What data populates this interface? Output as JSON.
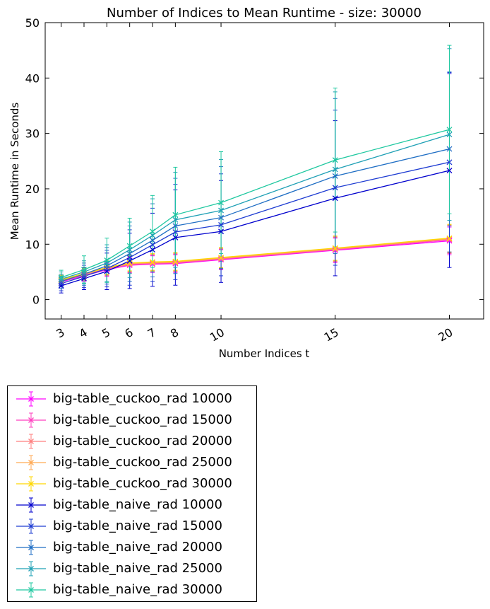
{
  "chart_data": {
    "type": "line",
    "title": "Number of Indices to Mean Runtime - size: 30000",
    "xlabel": "Number Indices t",
    "ylabel": "Mean Runtime in Seconds",
    "x": [
      3,
      4,
      5,
      6,
      7,
      8,
      10,
      15,
      20
    ],
    "xlim": [
      2.3,
      21.5
    ],
    "ylim": [
      -3.5,
      50
    ],
    "xticks": [
      3,
      4,
      5,
      6,
      7,
      8,
      10,
      15,
      20
    ],
    "yticks": [
      0,
      10,
      20,
      30,
      40,
      50
    ],
    "grid": false,
    "legend_position": "below",
    "series": [
      {
        "name": "big-table_cuckoo_rad 10000",
        "color": "#ff00ff",
        "values": [
          3.2,
          4.3,
          5.4,
          6.2,
          6.4,
          6.5,
          7.2,
          8.9,
          10.6
        ],
        "err": [
          0.8,
          1.0,
          1.2,
          1.4,
          1.5,
          1.6,
          1.8,
          2.2,
          2.5
        ]
      },
      {
        "name": "big-table_cuckoo_rad 15000",
        "color": "#ff3fbf",
        "values": [
          3.3,
          4.4,
          5.5,
          6.3,
          6.5,
          6.6,
          7.3,
          9.0,
          10.8
        ],
        "err": [
          0.8,
          1.0,
          1.2,
          1.4,
          1.5,
          1.6,
          1.8,
          2.2,
          2.5
        ]
      },
      {
        "name": "big-table_cuckoo_rad 20000",
        "color": "#ff7f7f",
        "values": [
          3.4,
          4.5,
          5.6,
          6.4,
          6.6,
          6.7,
          7.4,
          9.1,
          10.9
        ],
        "err": [
          0.8,
          1.0,
          1.2,
          1.4,
          1.5,
          1.6,
          1.8,
          2.2,
          2.5
        ]
      },
      {
        "name": "big-table_cuckoo_rad 25000",
        "color": "#ffaa55",
        "values": [
          3.5,
          4.6,
          5.7,
          6.5,
          6.7,
          6.8,
          7.5,
          9.2,
          11.0
        ],
        "err": [
          0.8,
          1.0,
          1.2,
          1.4,
          1.5,
          1.6,
          1.8,
          2.2,
          2.5
        ]
      },
      {
        "name": "big-table_cuckoo_rad 30000",
        "color": "#ffd700",
        "values": [
          3.6,
          4.7,
          5.8,
          6.6,
          6.8,
          6.9,
          7.6,
          9.3,
          11.1
        ],
        "err": [
          0.8,
          1.0,
          1.2,
          1.4,
          1.5,
          1.6,
          1.8,
          2.2,
          2.5
        ]
      },
      {
        "name": "big-table_naive_rad 10000",
        "color": "#0000cd",
        "values": [
          2.5,
          3.8,
          5.1,
          7.0,
          9.0,
          11.2,
          12.3,
          18.3,
          23.3
        ],
        "err": [
          1.3,
          2.0,
          3.3,
          5.0,
          6.6,
          8.6,
          9.2,
          14.0,
          17.5
        ]
      },
      {
        "name": "big-table_naive_rad 15000",
        "color": "#1e3cd2",
        "values": [
          2.9,
          4.2,
          5.6,
          7.6,
          9.9,
          12.2,
          13.5,
          20.2,
          24.8
        ],
        "err": [
          1.3,
          2.0,
          3.3,
          5.0,
          6.6,
          8.6,
          9.2,
          14.0,
          16.2
        ]
      },
      {
        "name": "big-table_naive_rad 20000",
        "color": "#1f6ec4",
        "values": [
          3.3,
          4.6,
          6.1,
          8.3,
          10.7,
          13.3,
          14.8,
          22.3,
          27.2
        ],
        "err": [
          1.3,
          2.0,
          3.3,
          5.0,
          6.6,
          8.6,
          9.2,
          14.0,
          13.9
        ]
      },
      {
        "name": "big-table_naive_rad 25000",
        "color": "#1fa0b5",
        "values": [
          3.7,
          5.0,
          6.6,
          9.0,
          11.6,
          14.4,
          16.1,
          23.5,
          29.8
        ],
        "err": [
          1.3,
          2.0,
          3.3,
          5.0,
          6.6,
          8.6,
          9.2,
          14.0,
          15.5
        ]
      },
      {
        "name": "big-table_naive_rad 30000",
        "color": "#1fc8a0",
        "values": [
          4.0,
          5.4,
          7.1,
          9.7,
          12.3,
          15.3,
          17.5,
          25.2,
          30.7
        ],
        "err": [
          1.3,
          2.5,
          4.0,
          5.0,
          6.5,
          8.6,
          9.2,
          13.0,
          15.2
        ]
      }
    ]
  }
}
